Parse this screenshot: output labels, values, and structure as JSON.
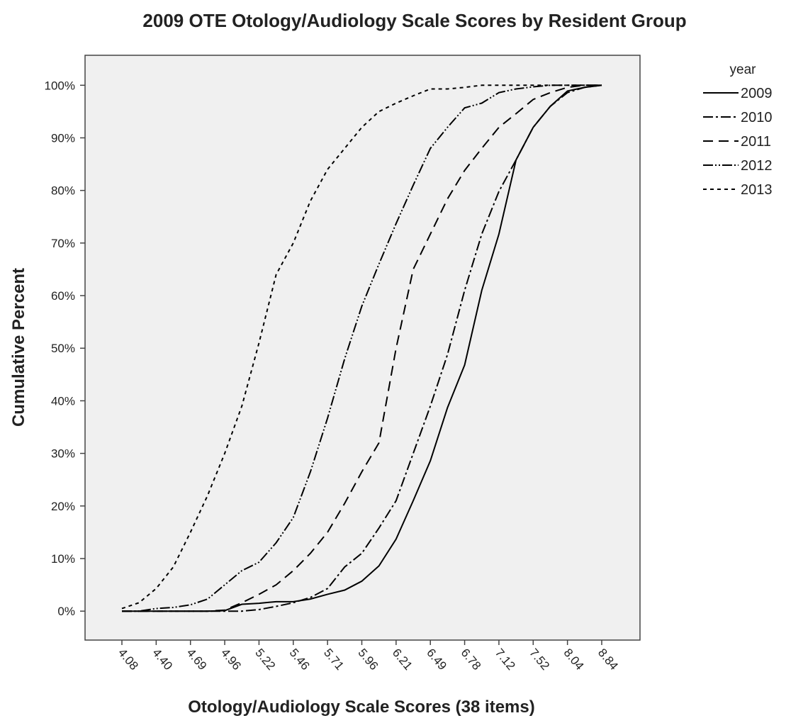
{
  "chart_data": {
    "type": "line",
    "title": "2009 OTE Otology/Audiology Scale Scores by Resident Group",
    "x_label": "Otology/Audiology Scale Scores (38 items)",
    "y_label": "Cumulative Percent",
    "legend_title": "year",
    "legend": "right",
    "categories": [
      "4.08",
      null,
      "4.40",
      null,
      "4.69",
      null,
      "4.96",
      null,
      "5.22",
      null,
      "5.46",
      null,
      "5.71",
      null,
      "5.96",
      null,
      "6.21",
      null,
      "6.49",
      null,
      "6.78",
      null,
      "7.12",
      null,
      "7.52",
      null,
      "8.04",
      null,
      "8.84"
    ],
    "ylim": [
      -5.5,
      105.7
    ],
    "yticks": [
      {
        "value": 0,
        "label": "0%"
      },
      {
        "value": 10,
        "label": "10%"
      },
      {
        "value": 20,
        "label": "20%"
      },
      {
        "value": 30,
        "label": "30%"
      },
      {
        "value": 40,
        "label": "40%"
      },
      {
        "value": 50,
        "label": "50%"
      },
      {
        "value": 60,
        "label": "60%"
      },
      {
        "value": 70,
        "label": "70%"
      },
      {
        "value": 80,
        "label": "80%"
      },
      {
        "value": 90,
        "label": "90%"
      },
      {
        "value": 100,
        "label": "100%"
      }
    ],
    "series": [
      {
        "name": "2009",
        "color": "#000000",
        "dash": "none",
        "values": [
          0,
          0,
          0,
          0,
          0,
          0,
          0.1,
          1.3,
          1.5,
          1.8,
          1.8,
          2.3,
          3.2,
          4,
          5.7,
          8.6,
          13.7,
          21,
          28.6,
          38.7,
          46.8,
          61,
          71.7,
          85.8,
          92,
          96,
          98.9,
          99.6,
          100
        ]
      },
      {
        "name": "2010",
        "color": "#000000",
        "dash": "14 4 3 4",
        "values": [
          0,
          0,
          0,
          0,
          0,
          0,
          0,
          0,
          0.3,
          0.9,
          1.6,
          2.6,
          4.3,
          8.4,
          11,
          15.8,
          21,
          30,
          39,
          48.8,
          61,
          71.7,
          79.8,
          85.8,
          92,
          96,
          98.6,
          99.6,
          100
        ]
      },
      {
        "name": "2011",
        "color": "#000000",
        "dash": "14 8",
        "values": [
          0,
          0,
          0,
          0,
          0,
          0,
          0.2,
          1.6,
          3.2,
          5,
          7.7,
          11,
          15,
          20.5,
          26.5,
          32,
          50,
          65,
          71.7,
          78.4,
          83.8,
          88,
          92,
          94.6,
          97.3,
          98.6,
          99.6,
          100,
          100
        ]
      },
      {
        "name": "2012",
        "color": "#000000",
        "dash": "14 3 2 3 2 3",
        "values": [
          0,
          0,
          0.5,
          0.7,
          1.2,
          2.3,
          5,
          7.7,
          9.3,
          13,
          17.8,
          26.5,
          36.7,
          48,
          58,
          66,
          73.7,
          81,
          88,
          92,
          95.7,
          96.6,
          98.6,
          99.3,
          99.7,
          100,
          100,
          100,
          100
        ]
      },
      {
        "name": "2013",
        "color": "#000000",
        "dash": "5 5",
        "values": [
          0.5,
          1.6,
          4.3,
          8.4,
          15,
          22,
          30,
          39,
          51,
          64,
          70,
          78,
          84,
          88,
          92,
          95,
          96.6,
          98,
          99.3,
          99.3,
          99.6,
          100,
          100,
          100,
          100,
          100,
          100,
          100,
          100
        ]
      }
    ]
  }
}
